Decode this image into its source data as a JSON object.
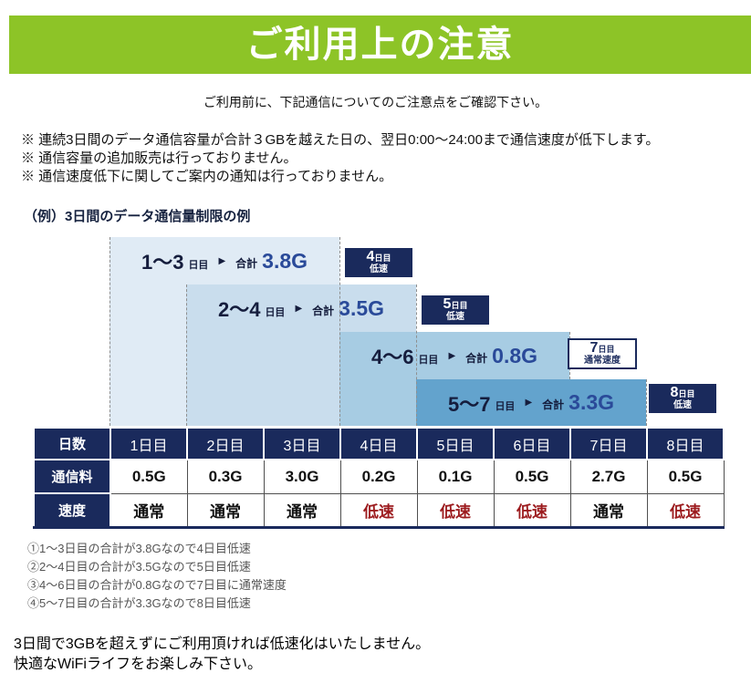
{
  "header": {
    "title": "ご利用上の注意",
    "subtitle": "ご利用前に、下記通信についてのご注意点をご確認下さい。"
  },
  "notes": [
    "※ 連続3日間のデータ通信容量が合計３GBを越えた日の、翌日0:00～24:00まで通信速度が低下します。",
    "※ 通信容量の追加販売は行っておりません。",
    "※ 通信速度低下に関してご案内の通知は行っておりません。"
  ],
  "example": {
    "heading": "（例）3日間のデータ通信量制限の例",
    "bars": [
      {
        "range": "1～3",
        "range_unit": "日目",
        "arrow": "▶",
        "total_label": "合計",
        "amount": "3.8G"
      },
      {
        "range": "2～4",
        "range_unit": "日目",
        "arrow": "▶",
        "total_label": "合計",
        "amount": "3.5G"
      },
      {
        "range": "4～6",
        "range_unit": "日目",
        "arrow": "▶",
        "total_label": "合計",
        "amount": "0.8G"
      },
      {
        "range": "5～7",
        "range_unit": "日目",
        "arrow": "▶",
        "total_label": "合計",
        "amount": "3.3G"
      }
    ],
    "badges": [
      {
        "day": "4",
        "unit": "日目",
        "status": "低速",
        "variant": "navy"
      },
      {
        "day": "5",
        "unit": "日目",
        "status": "低速",
        "variant": "navy"
      },
      {
        "day": "7",
        "unit": "日目",
        "status": "通常速度",
        "variant": "outline"
      },
      {
        "day": "8",
        "unit": "日目",
        "status": "低速",
        "variant": "navy"
      }
    ]
  },
  "table": {
    "corner": "日数",
    "days": [
      "1日目",
      "2日目",
      "3日目",
      "4日目",
      "5日目",
      "6日目",
      "7日目",
      "8日目"
    ],
    "rows": [
      {
        "label": "通信料",
        "values": [
          "0.5G",
          "0.3G",
          "3.0G",
          "0.2G",
          "0.1G",
          "0.5G",
          "2.7G",
          "0.5G"
        ]
      },
      {
        "label": "速度",
        "values": [
          "通常",
          "通常",
          "通常",
          "低速",
          "低速",
          "低速",
          "通常",
          "低速"
        ]
      }
    ],
    "slow_value": "低速"
  },
  "footnotes": [
    "①1～3日目の合計が3.8Gなので4日目低速",
    "②2～4日目の合計が3.5Gなので5日目低速",
    "③4～6日目の合計が0.8Gなので7日目に通常速度",
    "④5～7日目の合計が3.3Gなので8日目低速"
  ],
  "closing": [
    "3日間で3GBを超えずにご利用頂ければ低速化はいたしません。",
    "快適なWiFiライフをお楽しみ下さい。"
  ],
  "colors": {
    "accent_green": "#8dc427",
    "navy": "#1a2a5c",
    "slow_red": "#9c1b1e",
    "bar1": "#e0ebf5",
    "bar2": "#c9dded",
    "bar3": "#a7cce3",
    "bar4": "#63a3cd",
    "amount_blue": "#2a4a99"
  }
}
